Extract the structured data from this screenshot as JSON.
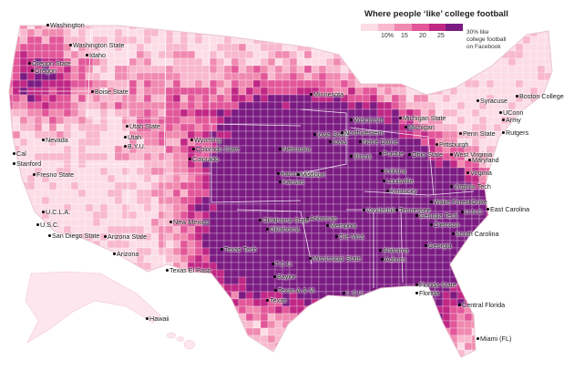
{
  "legend": {
    "title": "Where people ‘like’ college football",
    "ticks": [
      "10%",
      "15",
      "20",
      "25"
    ],
    "note": "30% like college football on Facebook",
    "colors": [
      "#fcdde6",
      "#f8b8cd",
      "#f08ab0",
      "#e2579a",
      "#c02785",
      "#7b1b82"
    ]
  },
  "labels": [
    {
      "text": "Washington",
      "dot": true
    },
    {
      "text": "Washington State",
      "dot": true
    },
    {
      "text": "Idaho",
      "dot": true
    },
    {
      "text": "Oregon State",
      "dot": true
    },
    {
      "text": "Oregon",
      "dot": true
    },
    {
      "text": "Boise State",
      "dot": true
    },
    {
      "text": "Nevada",
      "dot": true
    },
    {
      "text": "Cal",
      "dot": true
    },
    {
      "text": "Stanford",
      "dot": true
    },
    {
      "text": "Fresno State",
      "dot": true
    },
    {
      "text": "Utah State",
      "dot": true
    },
    {
      "text": "Utah",
      "dot": true
    },
    {
      "text": "B.Y.U.",
      "dot": true
    },
    {
      "text": "Wyoming",
      "dot": true
    },
    {
      "text": "Colorado State",
      "dot": true
    },
    {
      "text": "Colorado",
      "dot": true
    },
    {
      "text": "U.C.L.A.",
      "dot": true
    },
    {
      "text": "U.S.C.",
      "dot": true
    },
    {
      "text": "San Diego State",
      "dot": true
    },
    {
      "text": "Arizona State",
      "dot": true
    },
    {
      "text": "Arizona",
      "dot": true
    },
    {
      "text": "New Mexico",
      "dot": true
    },
    {
      "text": "Texas El Paso",
      "dot": true
    },
    {
      "text": "Hawaii",
      "dot": true
    },
    {
      "text": "Minnesota",
      "dot": true
    },
    {
      "text": "Nebraska",
      "dot": true
    },
    {
      "text": "Iowa State",
      "dot": true
    },
    {
      "text": "Iowa",
      "dot": true
    },
    {
      "text": "Kansas State",
      "dot": true
    },
    {
      "text": "Kansas",
      "dot": true
    },
    {
      "text": "Missouri",
      "dot": true
    },
    {
      "text": "Wisconsin",
      "dot": true
    },
    {
      "text": "Northwestern",
      "dot": true
    },
    {
      "text": "Illinois",
      "dot": true
    },
    {
      "text": "Purdue",
      "dot": true
    },
    {
      "text": "Notre Dame",
      "dot": true
    },
    {
      "text": "Indiana",
      "dot": true
    },
    {
      "text": "Michigan State",
      "dot": true
    },
    {
      "text": "Michigan",
      "dot": true
    },
    {
      "text": "Ohio State",
      "dot": true
    },
    {
      "text": "Penn State",
      "dot": true
    },
    {
      "text": "Pittsburgh",
      "dot": true
    },
    {
      "text": "West Virginia",
      "dot": true
    },
    {
      "text": "Maryland",
      "dot": true
    },
    {
      "text": "Virginia",
      "dot": true
    },
    {
      "text": "Virginia Tech",
      "dot": true
    },
    {
      "text": "Syracuse",
      "dot": true
    },
    {
      "text": "Boston College",
      "dot": true
    },
    {
      "text": "UConn",
      "dot": true
    },
    {
      "text": "Army",
      "dot": true
    },
    {
      "text": "Rutgers",
      "dot": true
    },
    {
      "text": "Duke",
      "dot": true
    },
    {
      "text": "U.N.C.",
      "dot": true
    },
    {
      "text": "East Carolina",
      "dot": true
    },
    {
      "text": "Wake Forest",
      "dot": true
    },
    {
      "text": "Kentucky",
      "dot": true
    },
    {
      "text": "Louisville",
      "dot": true
    },
    {
      "text": "Vanderbilt",
      "dot": true
    },
    {
      "text": "Tennessee",
      "dot": true
    },
    {
      "text": "Clemson",
      "dot": true
    },
    {
      "text": "South Carolina",
      "dot": true
    },
    {
      "text": "Georgia",
      "dot": true
    },
    {
      "text": "Georgia Tech",
      "dot": true
    },
    {
      "text": "Alabama",
      "dot": true
    },
    {
      "text": "Auburn",
      "dot": true
    },
    {
      "text": "Memphis",
      "dot": true
    },
    {
      "text": "Ole Miss",
      "dot": true
    },
    {
      "text": "Mississippi State",
      "dot": true
    },
    {
      "text": "Arkansas",
      "dot": true
    },
    {
      "text": "Oklahoma State",
      "dot": true
    },
    {
      "text": "Oklahoma",
      "dot": true
    },
    {
      "text": "Texas Tech",
      "dot": true
    },
    {
      "text": "T.C.U.",
      "dot": true
    },
    {
      "text": "Baylor",
      "dot": true
    },
    {
      "text": "Texas",
      "dot": true
    },
    {
      "text": "Texas A.& M.",
      "dot": true
    },
    {
      "text": "L.S.U.",
      "dot": true
    },
    {
      "text": "Florida State",
      "dot": true
    },
    {
      "text": "Florida",
      "dot": true
    },
    {
      "text": "Central Florida",
      "dot": true
    },
    {
      "text": "Miami (FL)",
      "dot": true
    }
  ]
}
